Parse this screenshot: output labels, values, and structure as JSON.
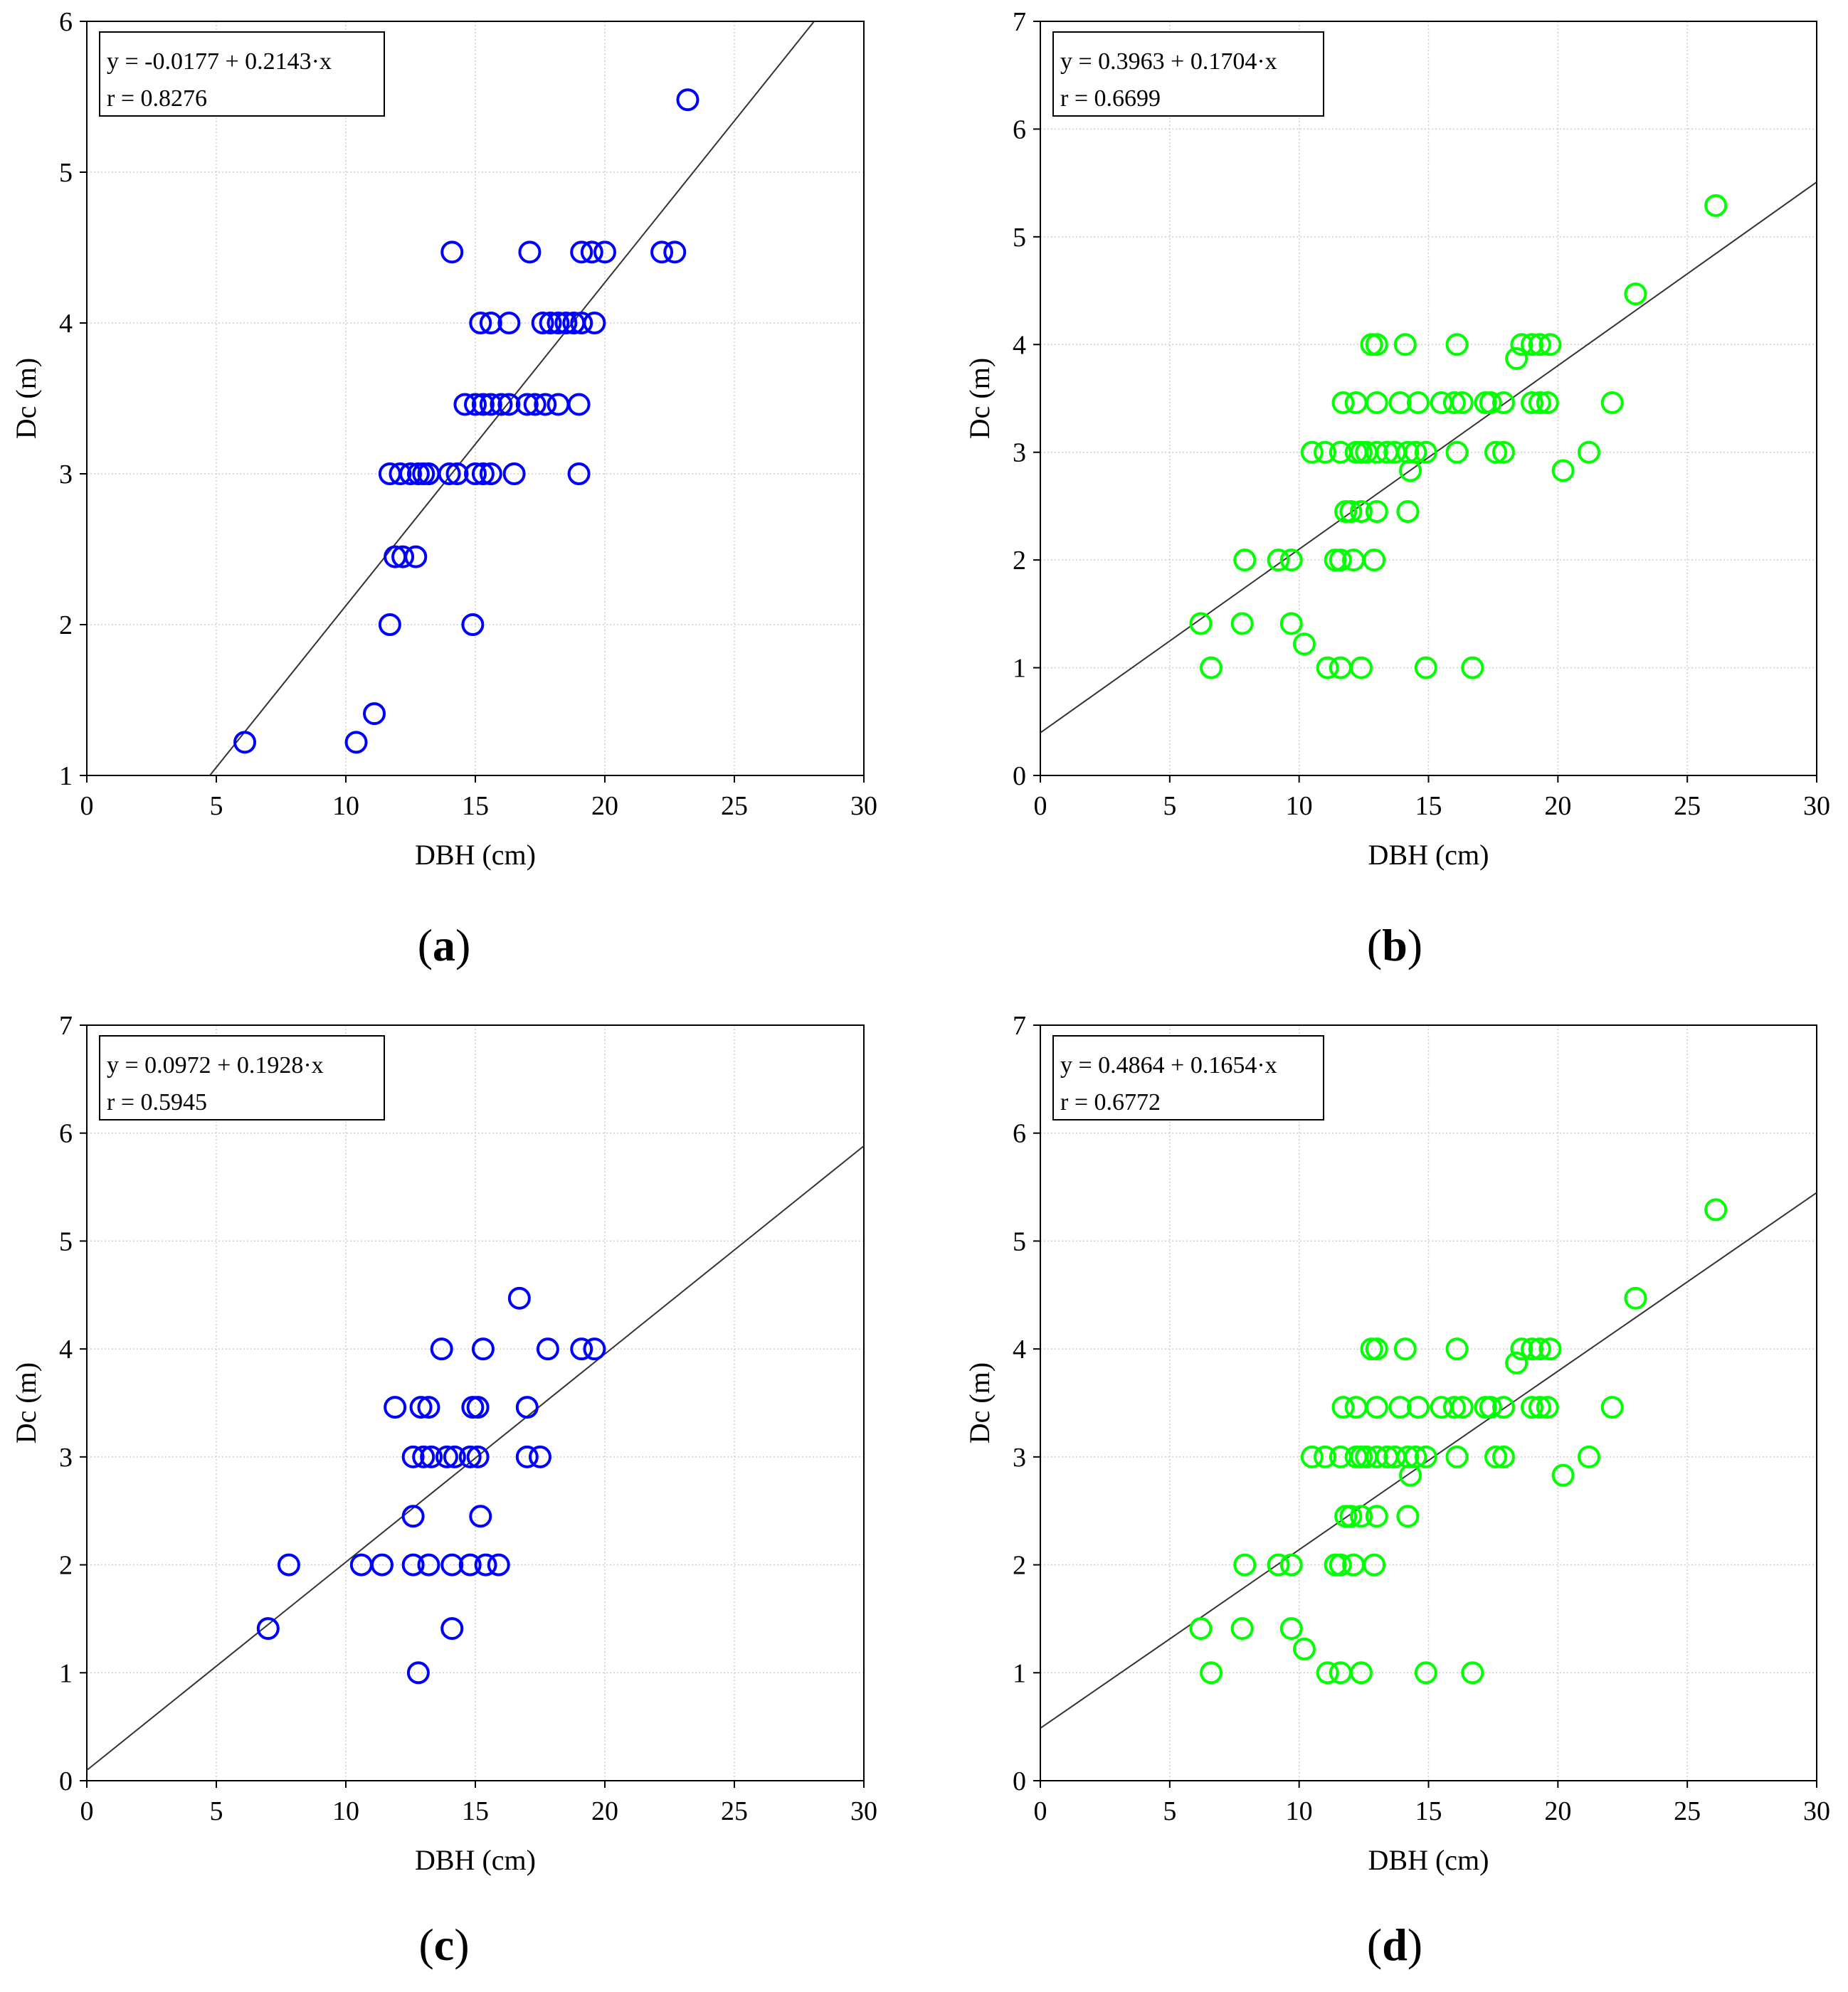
{
  "figure": {
    "panel_label_format": {
      "open": "(",
      "close": ")"
    }
  },
  "chart_data": [
    {
      "type": "scatter",
      "panel": "a",
      "title": "",
      "xlabel": "DBH (cm)",
      "ylabel": "Dc (m)",
      "xlim": [
        0,
        30
      ],
      "ylim": [
        1,
        6
      ],
      "xticks": [
        "0",
        "5",
        "10",
        "15",
        "20",
        "25",
        "30"
      ],
      "yticks": [
        "1",
        "2",
        "3",
        "4",
        "5",
        "6"
      ],
      "grid": true,
      "marker_color": "#0000ff",
      "equation": "y = -0.0177 + 0.2143·x",
      "r_label": "r = 0.8276",
      "fit": {
        "intercept": -0.0177,
        "slope": 0.2143
      },
      "x": [
        6.1,
        10.4,
        11.1,
        11.7,
        14.9,
        11.9,
        12.2,
        12.7,
        11.7,
        12.1,
        12.5,
        12.8,
        13.0,
        13.2,
        14.0,
        14.3,
        15.0,
        15.3,
        15.6,
        16.5,
        19.0,
        14.6,
        15.0,
        15.3,
        15.6,
        16.0,
        16.3,
        17.0,
        17.3,
        17.7,
        18.2,
        19.0,
        15.2,
        15.6,
        16.3,
        17.6,
        17.9,
        18.2,
        18.5,
        18.8,
        19.1,
        19.6,
        14.1,
        17.1,
        19.1,
        19.5,
        20.0,
        22.2,
        22.7,
        23.2
      ],
      "y": [
        1.22,
        1.22,
        1.41,
        2.0,
        2.0,
        2.45,
        2.45,
        2.45,
        3.0,
        3.0,
        3.0,
        3.0,
        3.0,
        3.0,
        3.0,
        3.0,
        3.0,
        3.0,
        3.0,
        3.0,
        3.0,
        3.46,
        3.46,
        3.46,
        3.46,
        3.46,
        3.46,
        3.46,
        3.46,
        3.46,
        3.46,
        3.46,
        4.0,
        4.0,
        4.0,
        4.0,
        4.0,
        4.0,
        4.0,
        4.0,
        4.0,
        4.0,
        4.47,
        4.47,
        4.47,
        4.47,
        4.47,
        4.47,
        4.47,
        5.48
      ]
    },
    {
      "type": "scatter",
      "panel": "b",
      "title": "",
      "xlabel": "DBH (cm)",
      "ylabel": "Dc (m)",
      "xlim": [
        0,
        30
      ],
      "ylim": [
        0,
        7
      ],
      "xticks": [
        "0",
        "5",
        "10",
        "15",
        "20",
        "25",
        "30"
      ],
      "yticks": [
        "0",
        "1",
        "2",
        "3",
        "4",
        "5",
        "6",
        "7"
      ],
      "grid": true,
      "marker_color": "#00ff00",
      "equation": "y = 0.3963 + 0.1704·x",
      "r_label": "r = 0.6699",
      "fit": {
        "intercept": 0.3963,
        "slope": 0.1704
      },
      "x": [
        6.6,
        11.1,
        11.6,
        12.4,
        14.9,
        16.7,
        6.2,
        7.8,
        9.7,
        10.2,
        7.9,
        9.2,
        9.7,
        11.4,
        11.6,
        12.1,
        12.9,
        11.8,
        12.0,
        12.4,
        13.0,
        14.2,
        10.5,
        11.0,
        11.6,
        12.2,
        12.4,
        12.6,
        13.0,
        13.4,
        13.7,
        14.2,
        14.5,
        14.9,
        16.1,
        17.6,
        17.9,
        14.3,
        20.2,
        21.2,
        11.7,
        12.2,
        13.0,
        13.9,
        14.6,
        15.5,
        16.0,
        16.3,
        17.2,
        17.4,
        17.9,
        19.0,
        19.3,
        19.6,
        22.1,
        18.4,
        12.8,
        13.0,
        14.1,
        16.1,
        18.6,
        19.0,
        19.3,
        19.7,
        23.0,
        26.1
      ],
      "y": [
        1.0,
        1.0,
        1.0,
        1.0,
        1.0,
        1.0,
        1.41,
        1.41,
        1.41,
        1.22,
        2.0,
        2.0,
        2.0,
        2.0,
        2.0,
        2.0,
        2.0,
        2.45,
        2.45,
        2.45,
        2.45,
        2.45,
        3.0,
        3.0,
        3.0,
        3.0,
        3.0,
        3.0,
        3.0,
        3.0,
        3.0,
        3.0,
        3.0,
        3.0,
        3.0,
        3.0,
        3.0,
        2.83,
        2.83,
        3.0,
        3.46,
        3.46,
        3.46,
        3.46,
        3.46,
        3.46,
        3.46,
        3.46,
        3.46,
        3.46,
        3.46,
        3.46,
        3.46,
        3.46,
        3.46,
        3.87,
        4.0,
        4.0,
        4.0,
        4.0,
        4.0,
        4.0,
        4.0,
        4.0,
        4.47,
        5.29
      ]
    },
    {
      "type": "scatter",
      "panel": "c",
      "title": "",
      "xlabel": "DBH (cm)",
      "ylabel": "Dc (m)",
      "xlim": [
        0,
        30
      ],
      "ylim": [
        0,
        7
      ],
      "xticks": [
        "0",
        "5",
        "10",
        "15",
        "20",
        "25",
        "30"
      ],
      "yticks": [
        "0",
        "1",
        "2",
        "3",
        "4",
        "5",
        "6",
        "7"
      ],
      "grid": true,
      "marker_color": "#0000ff",
      "equation": "y = 0.0972 + 0.1928·x",
      "r_label": "r = 0.5945",
      "fit": {
        "intercept": 0.0972,
        "slope": 0.1928
      },
      "x": [
        12.8,
        7.0,
        14.1,
        7.8,
        10.6,
        11.4,
        12.6,
        13.2,
        14.1,
        14.8,
        15.4,
        15.9,
        12.6,
        15.2,
        12.6,
        13.0,
        13.3,
        13.9,
        14.2,
        14.8,
        15.1,
        17.0,
        17.5,
        11.9,
        12.9,
        13.2,
        14.9,
        15.1,
        17.0,
        13.7,
        15.3,
        17.8,
        19.1,
        19.6,
        16.7
      ],
      "y": [
        1.0,
        1.41,
        1.41,
        2.0,
        2.0,
        2.0,
        2.0,
        2.0,
        2.0,
        2.0,
        2.0,
        2.0,
        2.45,
        2.45,
        3.0,
        3.0,
        3.0,
        3.0,
        3.0,
        3.0,
        3.0,
        3.0,
        3.0,
        3.46,
        3.46,
        3.46,
        3.46,
        3.46,
        3.46,
        4.0,
        4.0,
        4.0,
        4.0,
        4.0,
        4.47
      ]
    },
    {
      "type": "scatter",
      "panel": "d",
      "title": "",
      "xlabel": "DBH (cm)",
      "ylabel": "Dc (m)",
      "xlim": [
        0,
        30
      ],
      "ylim": [
        0,
        7
      ],
      "xticks": [
        "0",
        "5",
        "10",
        "15",
        "20",
        "25",
        "30"
      ],
      "yticks": [
        "0",
        "1",
        "2",
        "3",
        "4",
        "5",
        "6",
        "7"
      ],
      "grid": true,
      "marker_color": "#00ff00",
      "equation": "y = 0.4864 + 0.1654·x",
      "r_label": "r = 0.6772",
      "fit": {
        "intercept": 0.4864,
        "slope": 0.1654
      },
      "x": [
        6.6,
        11.1,
        11.6,
        12.4,
        14.9,
        16.7,
        6.2,
        7.8,
        9.7,
        10.2,
        7.9,
        9.2,
        9.7,
        11.4,
        11.6,
        12.1,
        12.9,
        11.8,
        12.0,
        12.4,
        13.0,
        14.2,
        10.5,
        11.0,
        11.6,
        12.2,
        12.4,
        12.6,
        13.0,
        13.4,
        13.7,
        14.2,
        14.5,
        14.9,
        16.1,
        17.6,
        17.9,
        14.3,
        20.2,
        21.2,
        11.7,
        12.2,
        13.0,
        13.9,
        14.6,
        15.5,
        16.0,
        16.3,
        17.2,
        17.4,
        17.9,
        19.0,
        19.3,
        19.6,
        22.1,
        18.4,
        12.8,
        13.0,
        14.1,
        16.1,
        18.6,
        19.0,
        19.3,
        19.7,
        23.0,
        26.1
      ],
      "y": [
        1.0,
        1.0,
        1.0,
        1.0,
        1.0,
        1.0,
        1.41,
        1.41,
        1.41,
        1.22,
        2.0,
        2.0,
        2.0,
        2.0,
        2.0,
        2.0,
        2.0,
        2.45,
        2.45,
        2.45,
        2.45,
        2.45,
        3.0,
        3.0,
        3.0,
        3.0,
        3.0,
        3.0,
        3.0,
        3.0,
        3.0,
        3.0,
        3.0,
        3.0,
        3.0,
        3.0,
        3.0,
        2.83,
        2.83,
        3.0,
        3.46,
        3.46,
        3.46,
        3.46,
        3.46,
        3.46,
        3.46,
        3.46,
        3.46,
        3.46,
        3.46,
        3.46,
        3.46,
        3.46,
        3.46,
        3.87,
        4.0,
        4.0,
        4.0,
        4.0,
        4.0,
        4.0,
        4.0,
        4.0,
        4.47,
        5.29
      ]
    }
  ]
}
